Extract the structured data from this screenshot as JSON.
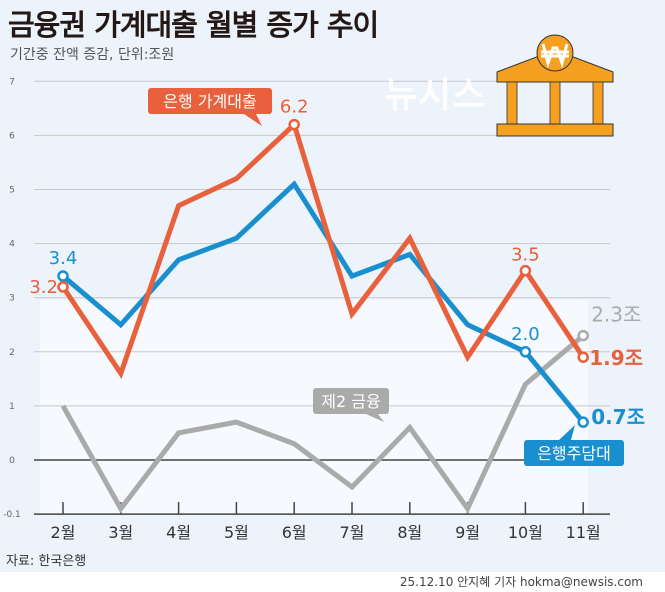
{
  "title": "금융권 가계대출 월별 증가 추이",
  "subtitle": "기간중 잔액 증감, 단위:조원",
  "source": "자료: 한국은행",
  "credit": "25.12.10 안지혜 기자 hokma@newsis.com",
  "watermark": "뉴시스",
  "icon": "bank-won-icon",
  "chart_data": {
    "type": "line",
    "categories": [
      "2월",
      "3월",
      "4월",
      "5월",
      "6월",
      "7월",
      "8월",
      "9월",
      "10월",
      "11월"
    ],
    "ytick_labels": [
      "-0.1",
      "0",
      "1",
      "2",
      "3",
      "4",
      "5",
      "6",
      "7"
    ],
    "ylim": [
      -1,
      7
    ],
    "grid": true,
    "series": [
      {
        "name": "은행 가계대출",
        "color": "#e8603c",
        "values": [
          3.2,
          1.6,
          4.7,
          5.2,
          6.2,
          2.7,
          4.1,
          1.9,
          3.5,
          1.9
        ],
        "labels": [
          {
            "index": 0,
            "text": "3.2"
          },
          {
            "index": 4,
            "text": "6.2"
          },
          {
            "index": 8,
            "text": "3.5"
          },
          {
            "index": 9,
            "text": "1.9조"
          }
        ]
      },
      {
        "name": "은행주담대",
        "color": "#1a8fd0",
        "values": [
          3.4,
          2.5,
          3.7,
          4.1,
          5.1,
          3.4,
          3.8,
          2.5,
          2.0,
          0.7
        ],
        "labels": [
          {
            "index": 0,
            "text": "3.4"
          },
          {
            "index": 8,
            "text": "2.0"
          },
          {
            "index": 9,
            "text": "0.7조"
          }
        ]
      },
      {
        "name": "제2 금융",
        "color": "#aaaaaa",
        "values": [
          1.0,
          -0.9,
          0.5,
          0.7,
          0.3,
          -0.5,
          0.6,
          -0.9,
          1.4,
          2.3
        ],
        "labels": [
          {
            "index": 9,
            "text": "2.3조"
          }
        ]
      }
    ]
  }
}
